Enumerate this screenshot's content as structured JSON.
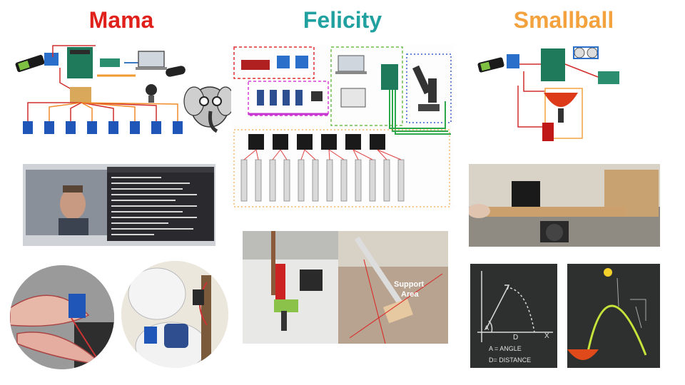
{
  "slide": {
    "columns": [
      {
        "title": "Mama",
        "color": "#e0201a"
      },
      {
        "title": "Felicity",
        "color": "#21a0a0"
      },
      {
        "title": "Smallball",
        "color": "#f4a23d"
      }
    ]
  },
  "felicity": {
    "support_label": "Support\nArea"
  },
  "smallball": {
    "chalk_line1": "A = ANGLE",
    "chalk_line2": "D= DISTANCE",
    "chalk_a": "A",
    "chalk_d": "D",
    "chalk_x": "X"
  },
  "colors": {
    "mama": "#e0201a",
    "felicity": "#21a0a0",
    "smallball": "#f4a23d"
  }
}
